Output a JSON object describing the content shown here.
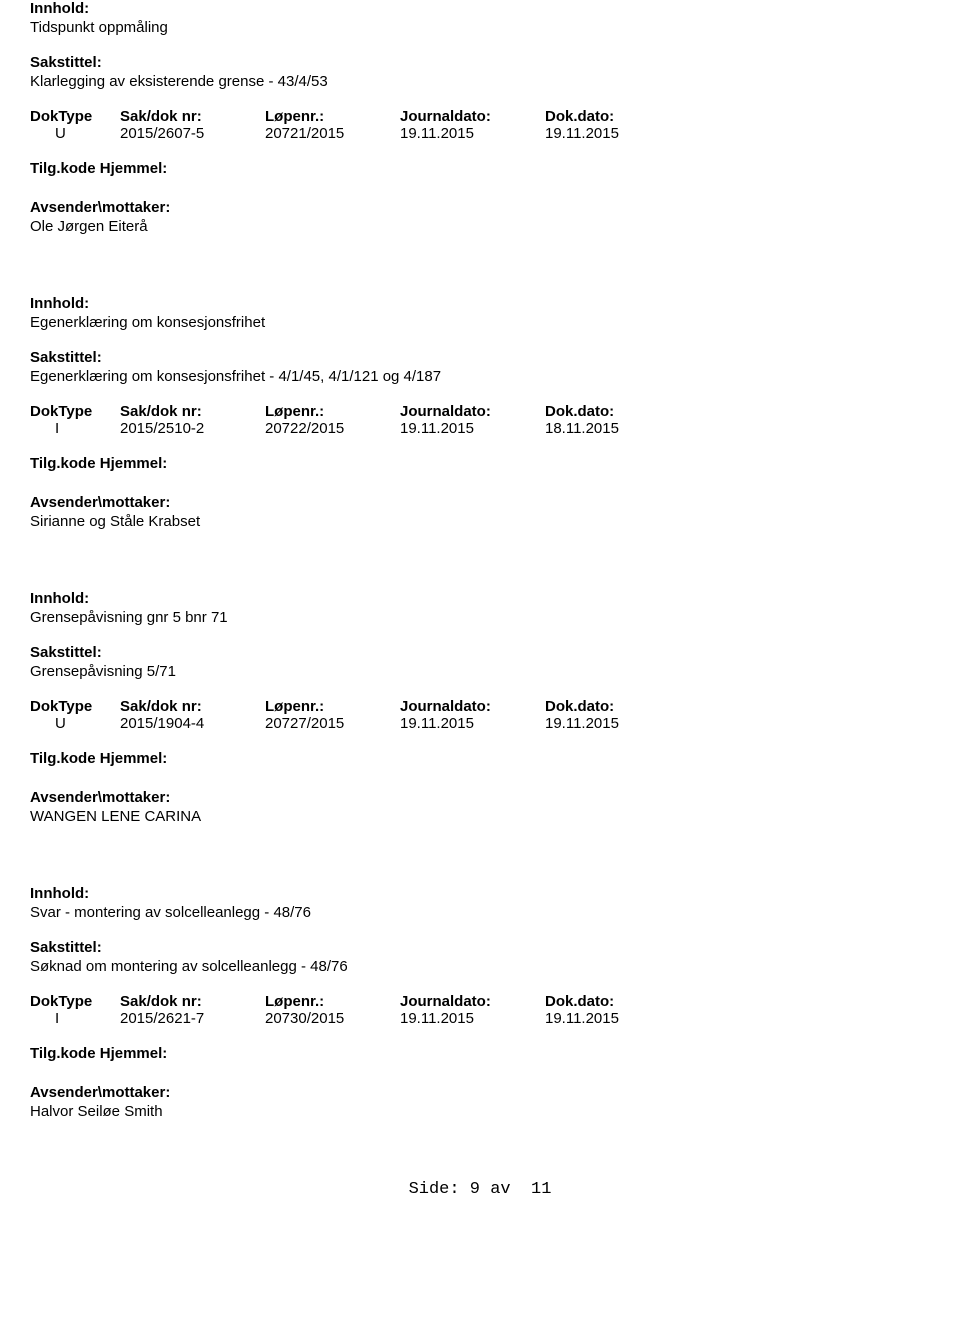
{
  "labels": {
    "innhold": "Innhold:",
    "sakstittel": "Sakstittel:",
    "doktype": "DokType",
    "saknr": "Sak/dok nr:",
    "lopenr": "Løpenr.:",
    "journaldato": "Journaldato:",
    "dokdato": "Dok.dato:",
    "tilgkode": "Tilg.kode",
    "hjemmel": "Hjemmel:",
    "avsender": "Avsender\\mottaker:"
  },
  "records": [
    {
      "innhold": "Tidspunkt oppmåling",
      "sakstittel": "Klarlegging av eksisterende grense - 43/4/53",
      "doktype": "U",
      "saknr": "2015/2607-5",
      "lopenr": "20721/2015",
      "journaldato": "19.11.2015",
      "dokdato": "19.11.2015",
      "avsender": "Ole Jørgen Eiterå"
    },
    {
      "innhold": "Egenerklæring om konsesjonsfrihet",
      "sakstittel": "Egenerklæring om konsesjonsfrihet - 4/1/45, 4/1/121 og 4/187",
      "doktype": "I",
      "saknr": "2015/2510-2",
      "lopenr": "20722/2015",
      "journaldato": "19.11.2015",
      "dokdato": "18.11.2015",
      "avsender": "Sirianne og Ståle Krabset"
    },
    {
      "innhold": "Grensepåvisning gnr 5 bnr 71",
      "sakstittel": "Grensepåvisning 5/71",
      "doktype": "U",
      "saknr": "2015/1904-4",
      "lopenr": "20727/2015",
      "journaldato": "19.11.2015",
      "dokdato": "19.11.2015",
      "avsender": "WANGEN LENE CARINA"
    },
    {
      "innhold": "Svar - montering av solcelleanlegg - 48/76",
      "sakstittel": "Søknad om montering av solcelleanlegg - 48/76",
      "doktype": "I",
      "saknr": "2015/2621-7",
      "lopenr": "20730/2015",
      "journaldato": "19.11.2015",
      "dokdato": "19.11.2015",
      "avsender": "Halvor Seiløe Smith"
    }
  ],
  "footer": {
    "side_label": "Side:",
    "current": "9",
    "av_label": "av",
    "total": "11"
  }
}
